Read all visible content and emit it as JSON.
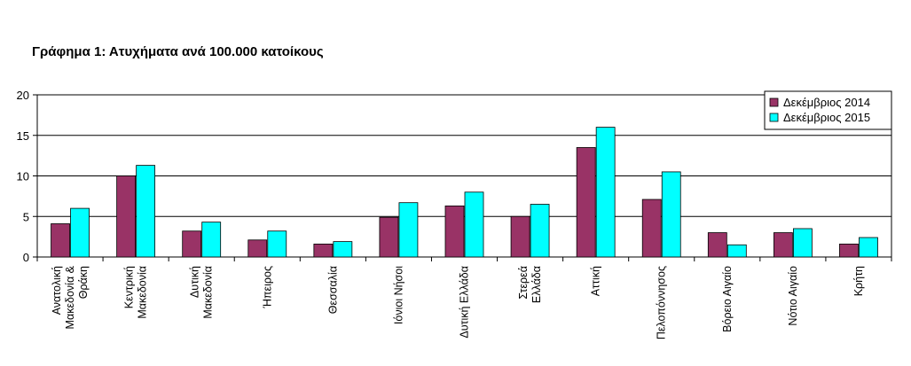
{
  "chart_data": {
    "type": "bar",
    "title": "Γράφημα 1: Ατυχήματα ανά 100.000 κατοίκους",
    "xlabel": "",
    "ylabel": "",
    "ylim": [
      0,
      20
    ],
    "yticks": [
      0,
      5,
      10,
      15,
      20
    ],
    "grid": true,
    "legend_position": "top-right",
    "categories": [
      "Ανατολική Μακεδονία & Θράκη",
      "Κεντρική Μακεδονία",
      "Δυτική Μακεδονία",
      "Ήπειρος",
      "Θεσσαλία",
      "Ιόνιοι Νήσοι",
      "Δυτική Ελλάδα",
      "Στερεά Ελλάδα",
      "Αττική",
      "Πελοπόννησος",
      "Βόρειο Αιγαίο",
      "Νότιο Αιγαίο",
      "Κρήτη"
    ],
    "category_lines": [
      [
        "Ανατολική",
        "Μακεδονία &",
        "Θράκη"
      ],
      [
        "Κεντρική",
        "Μακεδονία"
      ],
      [
        "Δυτική",
        "Μακεδονία"
      ],
      [
        "Ήπειρος"
      ],
      [
        "Θεσσαλία"
      ],
      [
        "Ιόνιοι Νήσοι"
      ],
      [
        "Δυτική Ελλάδα"
      ],
      [
        "Στερεά",
        "Ελλάδα"
      ],
      [
        "Αττική"
      ],
      [
        "Πελοπόννησος"
      ],
      [
        "Βόρειο Αιγαίο"
      ],
      [
        "Νότιο Αιγαίο"
      ],
      [
        "Κρήτη"
      ]
    ],
    "series": [
      {
        "name": "Δεκέμβριος 2014",
        "color": "#993366",
        "values": [
          4.1,
          10.0,
          3.2,
          2.1,
          1.6,
          4.9,
          6.3,
          5.0,
          13.5,
          7.1,
          3.0,
          3.0,
          1.6
        ]
      },
      {
        "name": "Δεκέμβριος 2015",
        "color": "#00FFFF",
        "values": [
          6.0,
          11.3,
          4.3,
          3.2,
          1.9,
          6.7,
          8.0,
          6.5,
          16.0,
          10.5,
          1.5,
          3.5,
          2.4
        ]
      }
    ]
  }
}
